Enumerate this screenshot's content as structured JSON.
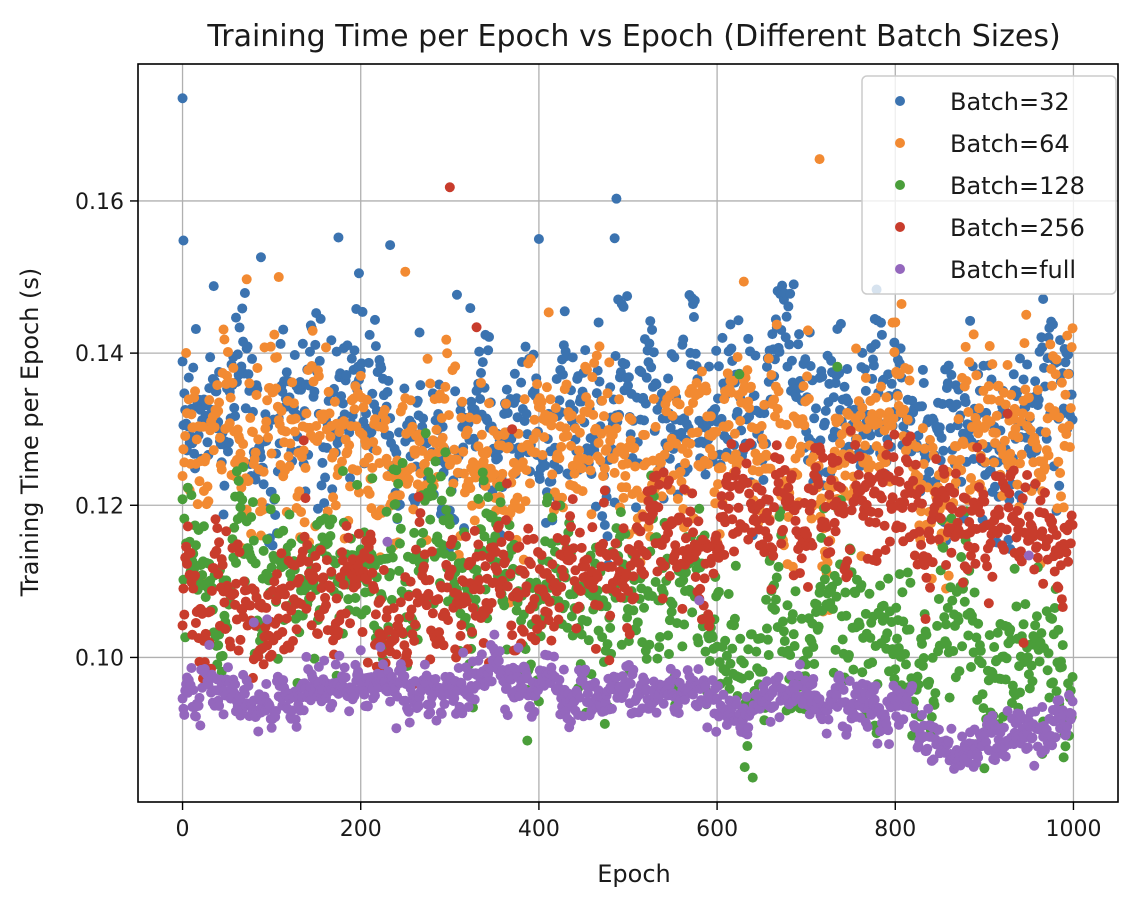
{
  "chart_data": {
    "type": "scatter",
    "title": "Training Time per Epoch vs Epoch (Different Batch Sizes)",
    "xlabel": "Epoch",
    "ylabel": "Training Time per Epoch (s)",
    "xlim": [
      -50,
      1050
    ],
    "ylim": [
      0.081,
      0.178
    ],
    "xticks": [
      0,
      200,
      400,
      600,
      800,
      1000
    ],
    "yticks": [
      0.1,
      0.12,
      0.14,
      0.16
    ],
    "xtick_labels": [
      "0",
      "200",
      "400",
      "600",
      "800",
      "1000"
    ],
    "ytick_labels": [
      "0.10",
      "0.12",
      "0.14",
      "0.16"
    ],
    "grid": true,
    "legend_position": "top-right",
    "n_epochs": 1000,
    "series": [
      {
        "name": "Batch=32",
        "color": "#3b73b0",
        "trend": [
          [
            0,
            0.134
          ],
          [
            500,
            0.131
          ],
          [
            1000,
            0.133
          ]
        ],
        "spread": 0.0058,
        "outliers": [
          [
            0,
            0.1735
          ],
          [
            1,
            0.1548
          ],
          [
            175,
            0.1552
          ],
          [
            233,
            0.1542
          ],
          [
            88,
            0.1526
          ],
          [
            487,
            0.1603
          ],
          [
            485,
            0.1551
          ],
          [
            400,
            0.155
          ],
          [
            198,
            0.1505
          ]
        ]
      },
      {
        "name": "Batch=64",
        "color": "#f28a32",
        "trend": [
          [
            0,
            0.13
          ],
          [
            500,
            0.127
          ],
          [
            1000,
            0.13
          ]
        ],
        "spread": 0.0058,
        "outliers": [
          [
            715,
            0.1655
          ],
          [
            108,
            0.15
          ],
          [
            250,
            0.1507
          ],
          [
            72,
            0.1497
          ],
          [
            630,
            0.1494
          ]
        ]
      },
      {
        "name": "Batch=128",
        "color": "#4a9e3a",
        "trend": [
          [
            0,
            0.114
          ],
          [
            200,
            0.114
          ],
          [
            400,
            0.111
          ],
          [
            600,
            0.106
          ],
          [
            800,
            0.103
          ],
          [
            1000,
            0.103
          ]
        ],
        "spread": 0.0055,
        "outliers": [
          [
            625,
            0.1372
          ],
          [
            735,
            0.1382
          ],
          [
            180,
            0.1245
          ]
        ]
      },
      {
        "name": "Batch=256",
        "color": "#c83c2c",
        "trend": [
          [
            0,
            0.108
          ],
          [
            200,
            0.107
          ],
          [
            300,
            0.11
          ],
          [
            500,
            0.114
          ],
          [
            700,
            0.116
          ],
          [
            850,
            0.118
          ],
          [
            1000,
            0.116
          ]
        ],
        "spread": 0.0045,
        "outliers": [
          [
            300,
            0.1618
          ],
          [
            330,
            0.1434
          ],
          [
            370,
            0.13
          ]
        ]
      },
      {
        "name": "Batch=full",
        "color": "#9467bd",
        "trend": [
          [
            0,
            0.0935
          ],
          [
            100,
            0.094
          ],
          [
            200,
            0.096
          ],
          [
            400,
            0.096
          ],
          [
            600,
            0.095
          ],
          [
            800,
            0.094
          ],
          [
            830,
            0.0875
          ],
          [
            1000,
            0.089
          ]
        ],
        "spread": 0.0018,
        "outliers": [
          [
            230,
            0.1152
          ],
          [
            95,
            0.105
          ],
          [
            350,
            0.103
          ],
          [
            580,
            0.1075
          ],
          [
            950,
            0.1134
          ],
          [
            80,
            0.1046
          ]
        ]
      }
    ]
  }
}
